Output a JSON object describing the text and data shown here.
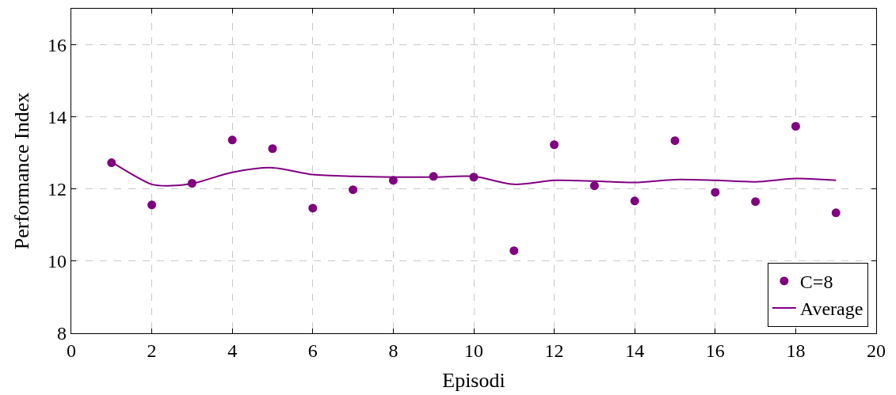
{
  "chart_data": {
    "type": "scatter",
    "xlabel": "Episodi",
    "ylabel": "Performance Index",
    "xlim": [
      0,
      20
    ],
    "ylim": [
      8,
      17
    ],
    "xticks": [
      0,
      2,
      4,
      6,
      8,
      10,
      12,
      14,
      16,
      18,
      20
    ],
    "yticks": [
      8,
      10,
      12,
      14,
      16
    ],
    "grid": true,
    "legend": "bottom right",
    "marker": "circle",
    "series": [
      {
        "name": "C=8",
        "color": "#800080",
        "x": [
          1,
          2,
          3,
          4,
          5,
          6,
          7,
          8,
          9,
          10,
          11,
          12,
          13,
          14,
          15,
          16,
          17,
          18,
          19
        ],
        "values": [
          12.73,
          11.56,
          12.16,
          13.36,
          13.12,
          11.47,
          11.98,
          12.24,
          12.35,
          12.33,
          10.29,
          13.23,
          12.09,
          11.67,
          13.34,
          11.91,
          11.65,
          13.74,
          11.34
        ]
      },
      {
        "name": "Average",
        "color": "#800080",
        "type": "line",
        "marker": "none",
        "line_style": "solid",
        "x": [
          1,
          2,
          2.4,
          3,
          4,
          5,
          6,
          7,
          8,
          9,
          10,
          11,
          12,
          13,
          14,
          15,
          16,
          17,
          18,
          19
        ],
        "values": [
          12.75,
          12.13,
          12.09,
          12.15,
          12.46,
          12.59,
          12.4,
          12.35,
          12.33,
          12.33,
          12.35,
          12.13,
          12.24,
          12.22,
          12.18,
          12.26,
          12.24,
          12.2,
          12.29,
          12.24
        ]
      }
    ]
  }
}
